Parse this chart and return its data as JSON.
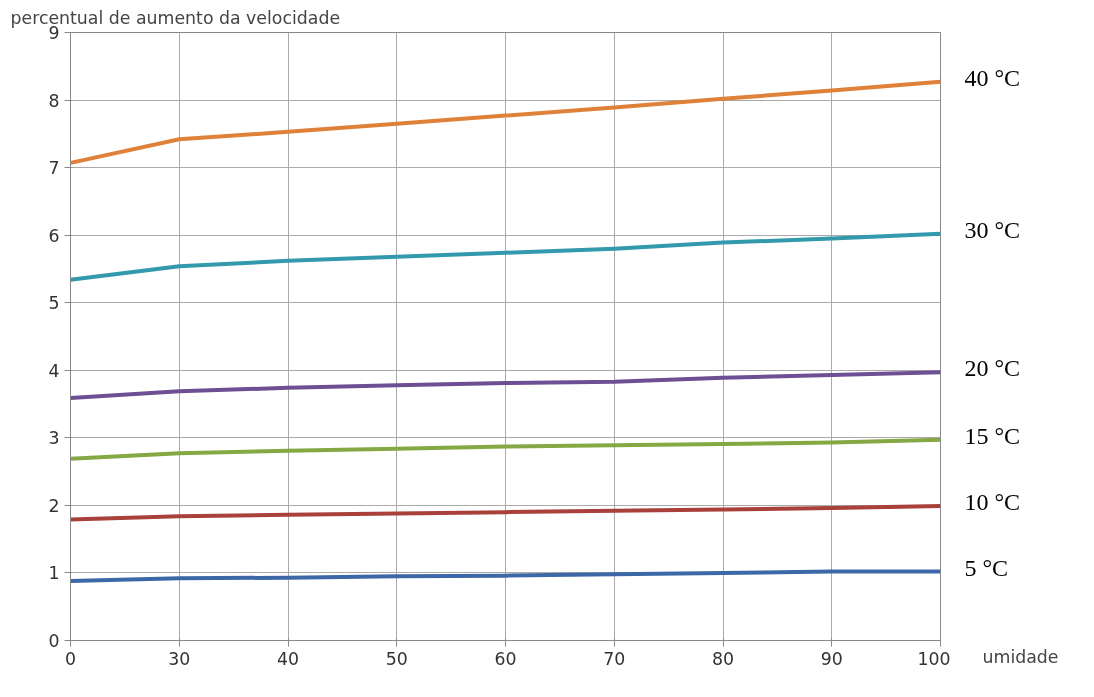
{
  "chart_data": {
    "type": "line",
    "title": "percentual de aumento da velocidade",
    "xlabel": "umidade",
    "categories": [
      "0",
      "30",
      "40",
      "50",
      "60",
      "70",
      "80",
      "90",
      "100"
    ],
    "ylim": [
      0,
      9
    ],
    "yticks": [
      0,
      1,
      2,
      3,
      4,
      5,
      6,
      7,
      8,
      9
    ],
    "grid": true,
    "marker": "none",
    "line_style": "solid",
    "series": [
      {
        "name": "40 °C",
        "color": "#e0813a",
        "values": [
          7.07,
          7.42,
          7.53,
          7.65,
          7.77,
          7.89,
          8.02,
          8.14,
          8.27
        ]
      },
      {
        "name": "30 °C",
        "color": "#3399ad",
        "values": [
          5.34,
          5.54,
          5.62,
          5.68,
          5.74,
          5.8,
          5.89,
          5.95,
          6.02
        ]
      },
      {
        "name": "20 °C",
        "color": "#6e4f94",
        "values": [
          3.59,
          3.69,
          3.74,
          3.78,
          3.81,
          3.83,
          3.89,
          3.93,
          3.97
        ]
      },
      {
        "name": "15 °C",
        "color": "#84a844",
        "values": [
          2.69,
          2.77,
          2.81,
          2.84,
          2.87,
          2.89,
          2.91,
          2.93,
          2.97
        ]
      },
      {
        "name": "10 °C",
        "color": "#a9403c",
        "values": [
          1.79,
          1.84,
          1.86,
          1.88,
          1.9,
          1.92,
          1.94,
          1.96,
          1.99
        ]
      },
      {
        "name": "5 °C",
        "color": "#3d68a8",
        "values": [
          0.88,
          0.92,
          0.93,
          0.95,
          0.96,
          0.98,
          1.0,
          1.02,
          1.02
        ]
      }
    ]
  }
}
